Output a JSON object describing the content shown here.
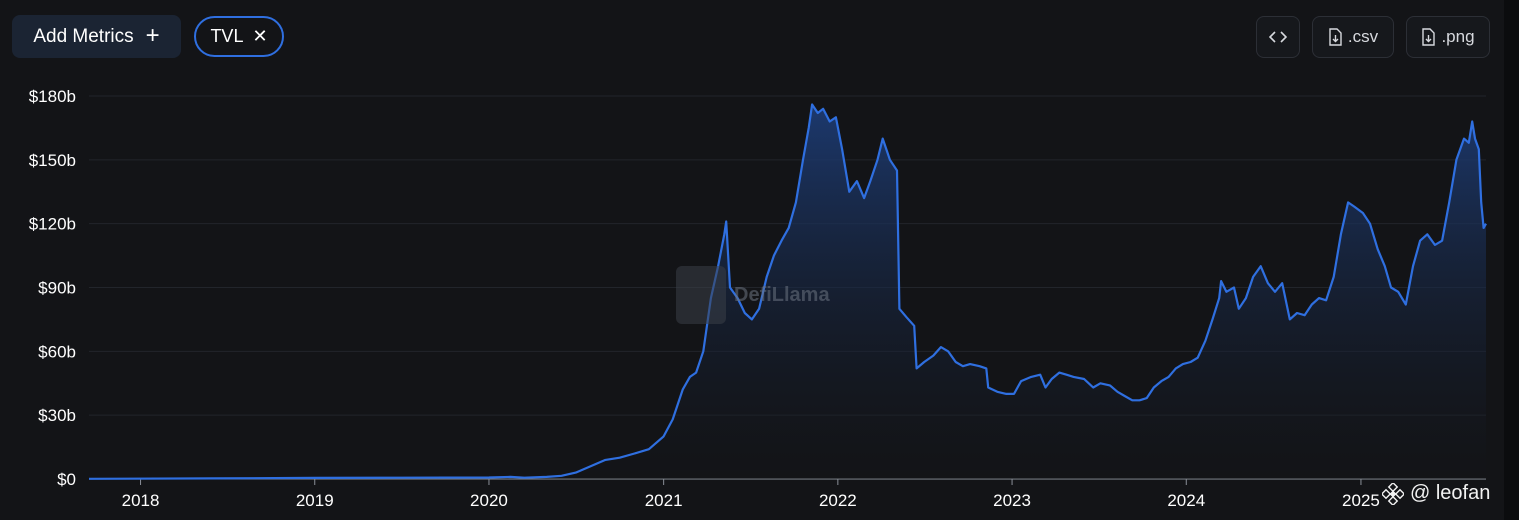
{
  "toolbar": {
    "add_metrics_label": "Add Metrics",
    "metric_chip_label": "TVL",
    "csv_label": ".csv",
    "png_label": ".png"
  },
  "watermark": {
    "text": "DefiLlama"
  },
  "credit": {
    "text": "@ leofan"
  },
  "colors": {
    "line": "#2f6fe0",
    "area_top": "#1d3d78",
    "area_bottom": "#131417",
    "background": "#131417"
  },
  "icons": [
    "plus-icon",
    "close-icon",
    "code-icon",
    "file-download-icon"
  ],
  "chart_data": {
    "type": "area",
    "series": [
      {
        "name": "TVL"
      }
    ],
    "x_ticks": [
      "2018",
      "2019",
      "2020",
      "2021",
      "2022",
      "2023",
      "2024",
      "2025"
    ],
    "y_ticks": [
      "$0",
      "$30b",
      "$60b",
      "$90b",
      "$120b",
      "$150b",
      "$180b"
    ],
    "y_tick_values": [
      0,
      30,
      60,
      90,
      120,
      150,
      180
    ],
    "ylim": [
      0,
      180
    ],
    "xlim": [
      "2017-09-15",
      "2025-09-20"
    ],
    "grid": true,
    "unit": "billion USD",
    "points": [
      [
        "2017-09-15",
        0.1
      ],
      [
        "2018-06-01",
        0.3
      ],
      [
        "2019-01-01",
        0.5
      ],
      [
        "2019-07-01",
        0.6
      ],
      [
        "2020-01-01",
        0.7
      ],
      [
        "2020-02-15",
        1.0
      ],
      [
        "2020-03-15",
        0.6
      ],
      [
        "2020-05-01",
        1.0
      ],
      [
        "2020-06-01",
        1.5
      ],
      [
        "2020-07-01",
        3
      ],
      [
        "2020-08-01",
        6
      ],
      [
        "2020-09-01",
        9
      ],
      [
        "2020-10-01",
        10
      ],
      [
        "2020-11-01",
        12
      ],
      [
        "2020-12-01",
        14
      ],
      [
        "2021-01-01",
        20
      ],
      [
        "2021-01-20",
        28
      ],
      [
        "2021-02-10",
        42
      ],
      [
        "2021-02-25",
        48
      ],
      [
        "2021-03-10",
        50
      ],
      [
        "2021-03-25",
        60
      ],
      [
        "2021-04-10",
        85
      ],
      [
        "2021-04-25",
        100
      ],
      [
        "2021-05-08",
        115
      ],
      [
        "2021-05-12",
        121
      ],
      [
        "2021-05-20",
        90
      ],
      [
        "2021-06-05",
        85
      ],
      [
        "2021-06-20",
        78
      ],
      [
        "2021-07-05",
        75
      ],
      [
        "2021-07-20",
        80
      ],
      [
        "2021-08-05",
        95
      ],
      [
        "2021-08-20",
        105
      ],
      [
        "2021-09-05",
        112
      ],
      [
        "2021-09-20",
        118
      ],
      [
        "2021-10-05",
        130
      ],
      [
        "2021-10-20",
        150
      ],
      [
        "2021-11-01",
        165
      ],
      [
        "2021-11-08",
        176
      ],
      [
        "2021-11-20",
        172
      ],
      [
        "2021-12-01",
        174
      ],
      [
        "2021-12-15",
        168
      ],
      [
        "2021-12-28",
        170
      ],
      [
        "2022-01-10",
        155
      ],
      [
        "2022-01-25",
        135
      ],
      [
        "2022-02-10",
        140
      ],
      [
        "2022-02-25",
        132
      ],
      [
        "2022-03-10",
        140
      ],
      [
        "2022-03-25",
        150
      ],
      [
        "2022-04-05",
        160
      ],
      [
        "2022-04-20",
        150
      ],
      [
        "2022-05-05",
        145
      ],
      [
        "2022-05-10",
        80
      ],
      [
        "2022-05-25",
        76
      ],
      [
        "2022-06-10",
        72
      ],
      [
        "2022-06-15",
        52
      ],
      [
        "2022-07-01",
        55
      ],
      [
        "2022-07-20",
        58
      ],
      [
        "2022-08-05",
        62
      ],
      [
        "2022-08-20",
        60
      ],
      [
        "2022-09-05",
        55
      ],
      [
        "2022-09-20",
        53
      ],
      [
        "2022-10-05",
        54
      ],
      [
        "2022-10-25",
        53
      ],
      [
        "2022-11-08",
        52
      ],
      [
        "2022-11-12",
        43
      ],
      [
        "2022-12-01",
        41
      ],
      [
        "2022-12-20",
        40
      ],
      [
        "2023-01-05",
        40
      ],
      [
        "2023-01-20",
        46
      ],
      [
        "2023-02-10",
        48
      ],
      [
        "2023-03-01",
        49
      ],
      [
        "2023-03-12",
        43
      ],
      [
        "2023-03-25",
        47
      ],
      [
        "2023-04-10",
        50
      ],
      [
        "2023-04-25",
        49
      ],
      [
        "2023-05-10",
        48
      ],
      [
        "2023-06-01",
        47
      ],
      [
        "2023-06-20",
        43
      ],
      [
        "2023-07-05",
        45
      ],
      [
        "2023-07-25",
        44
      ],
      [
        "2023-08-10",
        41
      ],
      [
        "2023-08-25",
        39
      ],
      [
        "2023-09-10",
        37
      ],
      [
        "2023-09-25",
        37
      ],
      [
        "2023-10-10",
        38
      ],
      [
        "2023-10-25",
        43
      ],
      [
        "2023-11-10",
        46
      ],
      [
        "2023-11-25",
        48
      ],
      [
        "2023-12-10",
        52
      ],
      [
        "2023-12-25",
        54
      ],
      [
        "2024-01-10",
        55
      ],
      [
        "2024-01-25",
        57
      ],
      [
        "2024-02-10",
        65
      ],
      [
        "2024-02-25",
        75
      ],
      [
        "2024-03-10",
        85
      ],
      [
        "2024-03-14",
        93
      ],
      [
        "2024-03-25",
        88
      ],
      [
        "2024-04-10",
        90
      ],
      [
        "2024-04-20",
        80
      ],
      [
        "2024-05-05",
        85
      ],
      [
        "2024-05-20",
        95
      ],
      [
        "2024-06-05",
        100
      ],
      [
        "2024-06-20",
        92
      ],
      [
        "2024-07-05",
        88
      ],
      [
        "2024-07-20",
        92
      ],
      [
        "2024-08-05",
        75
      ],
      [
        "2024-08-20",
        78
      ],
      [
        "2024-09-05",
        77
      ],
      [
        "2024-09-20",
        82
      ],
      [
        "2024-10-05",
        85
      ],
      [
        "2024-10-20",
        84
      ],
      [
        "2024-11-05",
        95
      ],
      [
        "2024-11-20",
        115
      ],
      [
        "2024-12-05",
        130
      ],
      [
        "2024-12-18",
        128
      ],
      [
        "2025-01-05",
        125
      ],
      [
        "2025-01-20",
        120
      ],
      [
        "2025-02-05",
        108
      ],
      [
        "2025-02-20",
        100
      ],
      [
        "2025-03-05",
        90
      ],
      [
        "2025-03-20",
        88
      ],
      [
        "2025-04-05",
        82
      ],
      [
        "2025-04-20",
        100
      ],
      [
        "2025-05-05",
        112
      ],
      [
        "2025-05-20",
        115
      ],
      [
        "2025-06-05",
        110
      ],
      [
        "2025-06-20",
        112
      ],
      [
        "2025-07-05",
        130
      ],
      [
        "2025-07-20",
        150
      ],
      [
        "2025-08-05",
        160
      ],
      [
        "2025-08-15",
        158
      ],
      [
        "2025-08-22",
        168
      ],
      [
        "2025-08-28",
        160
      ],
      [
        "2025-09-05",
        155
      ],
      [
        "2025-09-10",
        130
      ],
      [
        "2025-09-15",
        118
      ],
      [
        "2025-09-20",
        120
      ]
    ]
  }
}
